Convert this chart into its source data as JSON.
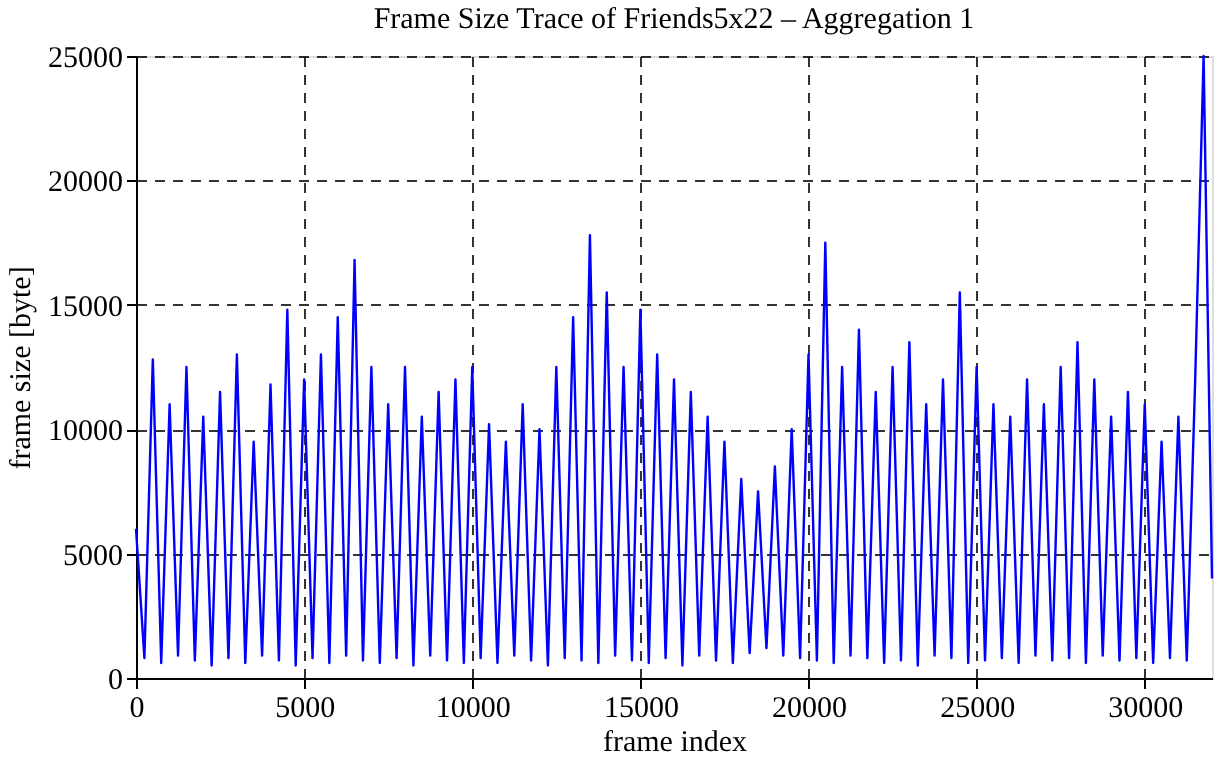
{
  "chart_data": {
    "type": "line",
    "title": "Frame Size Trace of Friends5x22 – Aggregation 1",
    "xlabel": "frame index",
    "ylabel": "frame size [byte]",
    "x": [
      0,
      250,
      500,
      750,
      1000,
      1250,
      1500,
      1750,
      2000,
      2250,
      2500,
      2750,
      3000,
      3250,
      3500,
      3750,
      4000,
      4250,
      4500,
      4750,
      5000,
      5250,
      5500,
      5750,
      6000,
      6250,
      6500,
      6750,
      7000,
      7250,
      7500,
      7750,
      8000,
      8250,
      8500,
      8750,
      9000,
      9250,
      9500,
      9750,
      10000,
      10250,
      10500,
      10750,
      11000,
      11250,
      11500,
      11750,
      12000,
      12250,
      12500,
      12750,
      13000,
      13250,
      13500,
      13750,
      14000,
      14250,
      14500,
      14750,
      15000,
      15250,
      15500,
      15750,
      16000,
      16250,
      16500,
      16750,
      17000,
      17250,
      17500,
      17750,
      18000,
      18250,
      18500,
      18750,
      19000,
      19250,
      19500,
      19750,
      20000,
      20250,
      20500,
      20750,
      21000,
      21250,
      21500,
      21750,
      22000,
      22250,
      22500,
      22750,
      23000,
      23250,
      23500,
      23750,
      24000,
      24250,
      24500,
      24750,
      25000,
      25250,
      25500,
      25750,
      26000,
      26250,
      26500,
      26750,
      27000,
      27250,
      27500,
      27750,
      28000,
      28250,
      28500,
      28750,
      29000,
      29250,
      29500,
      29750,
      30000,
      30250,
      30500,
      30750,
      31000,
      31250,
      31500,
      31750,
      32000
    ],
    "series": [
      {
        "color": "#0000ff",
        "values": [
          6000,
          800,
          12800,
          600,
          11000,
          900,
          12500,
          700,
          10500,
          500,
          11500,
          800,
          13000,
          600,
          9500,
          900,
          11800,
          700,
          14800,
          500,
          12000,
          800,
          13000,
          600,
          14500,
          900,
          16800,
          700,
          12500,
          600,
          11000,
          800,
          12500,
          500,
          10500,
          900,
          11500,
          700,
          12000,
          600,
          12500,
          800,
          10200,
          600,
          9500,
          900,
          11000,
          700,
          10000,
          500,
          12500,
          800,
          14500,
          700,
          17800,
          600,
          15500,
          900,
          12500,
          700,
          14800,
          600,
          13000,
          800,
          12000,
          500,
          11500,
          900,
          10500,
          700,
          9500,
          600,
          8000,
          1000,
          7500,
          1200,
          8500,
          900,
          10000,
          800,
          13000,
          700,
          17500,
          600,
          12500,
          900,
          14000,
          800,
          11500,
          600,
          12500,
          700,
          13500,
          500,
          11000,
          900,
          12000,
          800,
          15500,
          600,
          12500,
          700,
          11000,
          800,
          10500,
          600,
          12000,
          900,
          11000,
          700,
          12500,
          800,
          13500,
          600,
          12000,
          900,
          10500,
          700,
          11500,
          800,
          11000,
          600,
          9500,
          800,
          10500,
          700,
          12000,
          25000,
          4000
        ]
      }
    ],
    "xlim": [
      0,
      32000
    ],
    "ylim": [
      0,
      25000
    ],
    "xticks": [
      0,
      5000,
      10000,
      15000,
      20000,
      25000,
      30000
    ],
    "yticks": [
      0,
      5000,
      10000,
      15000,
      20000,
      25000
    ],
    "grid": true,
    "legend": false,
    "line_style": "solid",
    "marker": "none"
  }
}
